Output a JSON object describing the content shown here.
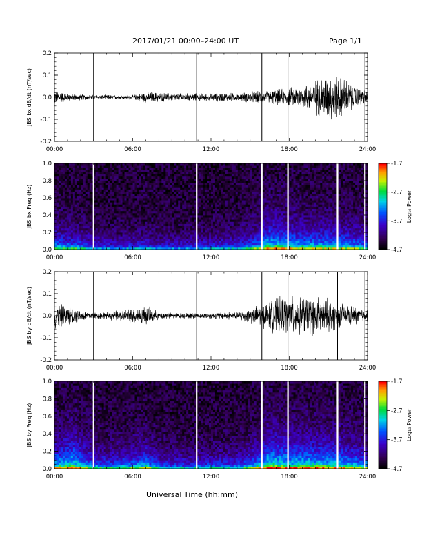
{
  "header": {
    "date_range": "2017/01/21   00:00–24:00 UT",
    "page": "Page 1/1"
  },
  "x_axis": {
    "label": "Universal Time (hh:mm)",
    "ticks": [
      "00:00",
      "06:00",
      "12:00",
      "18:00",
      "24:00"
    ]
  },
  "colorbar": {
    "label": "Log₁₀ Power",
    "ticks": [
      "-1.7",
      "-2.7",
      "-3.7",
      "-4.7"
    ],
    "range": [
      -4.7,
      -1.7
    ]
  },
  "colors": {
    "trace": "#000000",
    "gap_marker": "#ffffff"
  },
  "chart_data": [
    {
      "type": "line",
      "ylabel": "JBS bx dB/dt (nT/sec)",
      "xlim": [
        0,
        24
      ],
      "ylim": [
        -0.2,
        0.2
      ],
      "y_ticks": [
        "0.2",
        "0.1",
        "0.0",
        "-0.1",
        "-0.2"
      ],
      "spikes_at_hours": [
        3.0,
        10.9,
        15.9,
        17.9,
        23.8
      ],
      "envelope": {
        "hours": [
          0,
          1,
          2,
          3,
          4,
          5,
          6,
          7,
          8,
          9,
          10,
          11,
          12,
          13,
          14,
          15,
          16,
          17,
          18,
          19,
          20,
          21,
          22,
          23,
          24
        ],
        "amplitude": [
          0.04,
          0.02,
          0.015,
          0.012,
          0.012,
          0.01,
          0.01,
          0.03,
          0.025,
          0.02,
          0.02,
          0.02,
          0.02,
          0.025,
          0.02,
          0.03,
          0.03,
          0.04,
          0.05,
          0.06,
          0.09,
          0.12,
          0.11,
          0.06,
          0.03
        ]
      }
    },
    {
      "type": "heatmap",
      "ylabel": "JBS bx Freq (Hz)",
      "xlim": [
        0,
        24
      ],
      "ylim": [
        0,
        1.0
      ],
      "y_ticks": [
        "1.0",
        "0.8",
        "0.6",
        "0.4",
        "0.2",
        "0.0"
      ],
      "value_units": "log10 power",
      "gaps_at_hours": [
        3.0,
        10.9,
        15.9,
        17.9,
        21.7,
        23.8
      ],
      "activity": {
        "hours": [
          0,
          2,
          3,
          5,
          6.5,
          8,
          10,
          12,
          14,
          15.5,
          16.5,
          18,
          20,
          22,
          24
        ],
        "level": [
          0.45,
          0.35,
          0.2,
          0.15,
          0.25,
          0.15,
          0.15,
          0.2,
          0.25,
          0.45,
          0.7,
          0.6,
          0.55,
          0.55,
          0.4
        ]
      }
    },
    {
      "type": "line",
      "ylabel": "JBS by dB/dt (nT/sec)",
      "xlim": [
        0,
        24
      ],
      "ylim": [
        -0.2,
        0.2
      ],
      "y_ticks": [
        "0.2",
        "0.1",
        "0.0",
        "-0.1",
        "-0.2"
      ],
      "spikes_at_hours": [
        3.0,
        10.9,
        15.9,
        17.9,
        21.7,
        23.8
      ],
      "envelope": {
        "hours": [
          0,
          1,
          2,
          3,
          4,
          5,
          6,
          7,
          8,
          9,
          10,
          11,
          12,
          13,
          14,
          15,
          16,
          17,
          18,
          19,
          20,
          21,
          22,
          23,
          24
        ],
        "amplitude": [
          0.07,
          0.05,
          0.03,
          0.02,
          0.02,
          0.03,
          0.04,
          0.05,
          0.02,
          0.015,
          0.015,
          0.015,
          0.015,
          0.02,
          0.02,
          0.04,
          0.06,
          0.09,
          0.1,
          0.1,
          0.1,
          0.09,
          0.06,
          0.05,
          0.03
        ]
      }
    },
    {
      "type": "heatmap",
      "ylabel": "JBS by Freq (Hz)",
      "xlim": [
        0,
        24
      ],
      "ylim": [
        0,
        1.0
      ],
      "y_ticks": [
        "1.0",
        "0.8",
        "0.6",
        "0.4",
        "0.2",
        "0.0"
      ],
      "value_units": "log10 power",
      "gaps_at_hours": [
        3.0,
        10.9,
        15.9,
        17.9,
        21.7,
        23.8
      ],
      "activity": {
        "hours": [
          0,
          1.5,
          3,
          4,
          6,
          7,
          8,
          10,
          12,
          14,
          15.5,
          16.5,
          18,
          20,
          22,
          24
        ],
        "level": [
          0.6,
          0.75,
          0.4,
          0.35,
          0.45,
          0.55,
          0.3,
          0.25,
          0.3,
          0.3,
          0.55,
          0.8,
          0.7,
          0.7,
          0.65,
          0.5
        ]
      }
    }
  ]
}
